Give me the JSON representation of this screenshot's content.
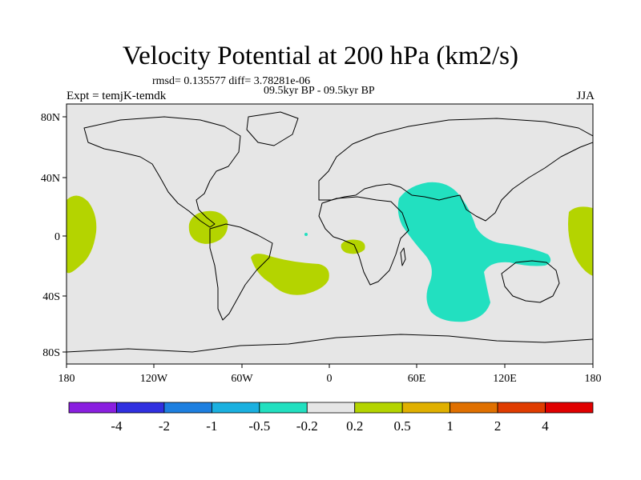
{
  "title": "Velocity Potential at 200 hPa (km2/s)",
  "stats": "rmsd= 0.135577 diff= 3.78281e-06",
  "experiment": "Expt = temjK-temdk",
  "period": "09.5kyr BP - 09.5kyr BP",
  "season": "JJA",
  "lat_ticks": [
    "80N",
    "40N",
    "0",
    "40S",
    "80S"
  ],
  "lon_ticks": [
    "180",
    "120W",
    "60W",
    "0",
    "60E",
    "120E",
    "180"
  ],
  "colorbar": {
    "labels": [
      "-4",
      "-2",
      "-1",
      "-0.5",
      "-0.2",
      "0.2",
      "0.5",
      "1",
      "2",
      "4"
    ],
    "colors": [
      "#8a1fe0",
      "#3030e0",
      "#1d7fe0",
      "#1ab0e0",
      "#22e0c0",
      "#e6e6e6",
      "#b4d400",
      "#e0b000",
      "#e07000",
      "#e03c00",
      "#e00000"
    ]
  },
  "colors": {
    "background": "#e6e6e6",
    "positive": "#b4d400",
    "negative": "#22e0c0"
  }
}
